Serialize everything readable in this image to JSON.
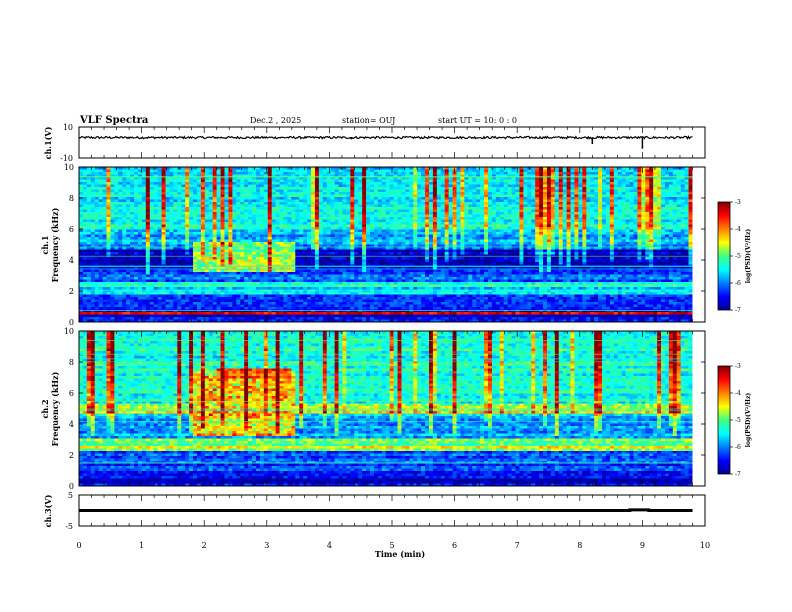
{
  "header": {
    "title": "VLF Spectra",
    "date": "Dec.2 , 2025",
    "station": "station= OUJ",
    "start": "start  UT  =   10: 0  : 0"
  },
  "chart_data": [
    {
      "type": "line",
      "name": "ch1-waveform",
      "ylabel": "ch.1(V)",
      "ylim": [
        -10,
        10
      ],
      "y_ticks": [
        "10",
        "-10"
      ],
      "x": [
        0,
        1,
        2,
        3,
        4,
        4.35,
        4.5,
        5,
        6,
        7,
        8,
        8.2,
        8.3,
        9,
        9.1,
        9.8
      ],
      "y": [
        3.2,
        3.3,
        3.2,
        3.3,
        3.2,
        2.0,
        3.2,
        3.3,
        3.2,
        3.3,
        3.2,
        -1.0,
        3.2,
        -4.0,
        3.2,
        3.3
      ]
    },
    {
      "type": "heatmap",
      "name": "ch1-spectrogram",
      "ylabel": "ch.1\nFrequency (kHz)",
      "ylabel_line1": "ch.1",
      "ylabel_line2": "Frequency (kHz)",
      "xlim": [
        0,
        10
      ],
      "ylim": [
        0,
        10
      ],
      "y_ticks": [
        "0",
        "2",
        "4",
        "6",
        "8",
        "10"
      ],
      "colorbar": {
        "label": "log(PSD)(V²/Hz)",
        "range": [
          -7,
          -3
        ],
        "ticks": [
          "-3",
          "-4",
          "-5",
          "-6",
          "-7"
        ]
      },
      "features": [
        {
          "name": "dark-band",
          "f_low": 3.5,
          "f_high": 4.5,
          "t_start": 0,
          "t_end": 9.8
        },
        {
          "name": "enhanced-emission",
          "f_low": 3.2,
          "f_high": 5.2,
          "t_start": 1.8,
          "t_end": 3.45
        },
        {
          "name": "power-line-harmonic",
          "f": 0.6,
          "t_start": 0,
          "t_end": 9.8
        }
      ]
    },
    {
      "type": "heatmap",
      "name": "ch2-spectrogram",
      "ylabel": "ch.2\nFrequency (kHz)",
      "ylabel_line1": "ch.2",
      "ylabel_line2": "Frequency (kHz)",
      "xlim": [
        0,
        10
      ],
      "ylim": [
        0,
        10
      ],
      "y_ticks": [
        "0",
        "2",
        "4",
        "6",
        "8",
        "10"
      ],
      "colorbar": {
        "label": "log(PSD)(V²/Hz)",
        "range": [
          -7,
          -3
        ],
        "ticks": [
          "-3",
          "-4",
          "-5",
          "-6",
          "-7"
        ]
      },
      "features": [
        {
          "name": "band-5kHz",
          "f_low": 4.6,
          "f_high": 5.4,
          "t_start": 0,
          "t_end": 9.8
        },
        {
          "name": "band-2.5kHz",
          "f_low": 2.2,
          "f_high": 2.8,
          "t_start": 0,
          "t_end": 9.8
        },
        {
          "name": "enhanced-emission",
          "f_low": 3.2,
          "f_high": 7.5,
          "t_start": 1.8,
          "t_end": 3.45
        }
      ]
    },
    {
      "type": "line",
      "name": "ch3-waveform",
      "ylabel": "ch.3(V)",
      "ylim": [
        -5,
        5
      ],
      "y_ticks": [
        "5",
        "-5"
      ],
      "x": [
        0,
        8.8,
        8.8,
        9.1,
        9.1,
        9.8
      ],
      "y": [
        0,
        0,
        0.2,
        0.2,
        0,
        0
      ]
    }
  ],
  "xaxis": {
    "label": "Time  (min)",
    "xlim": [
      0,
      10
    ],
    "ticks": [
      "0",
      "1",
      "2",
      "3",
      "4",
      "5",
      "6",
      "7",
      "8",
      "9",
      "10"
    ]
  }
}
